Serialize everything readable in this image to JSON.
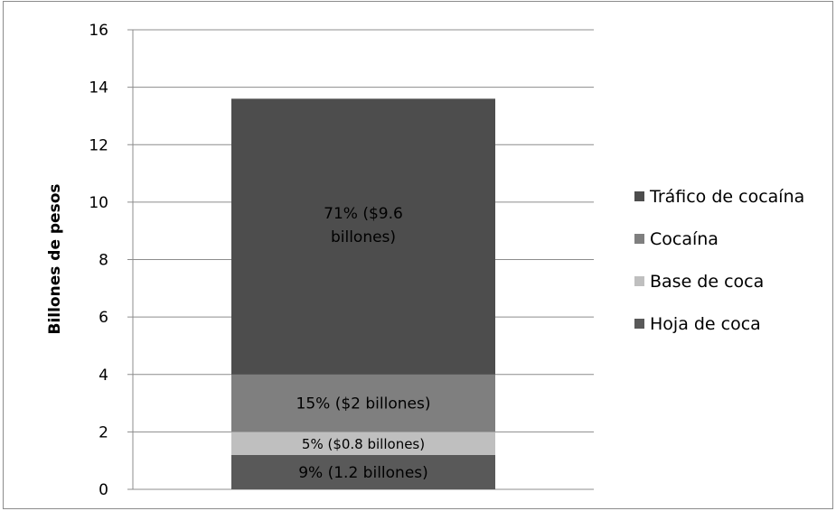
{
  "chart_data": {
    "type": "bar",
    "stacked": true,
    "categories": [
      ""
    ],
    "xlabel": "",
    "ylabel": "Billones de pesos",
    "ylim": [
      0,
      16
    ],
    "yticks": [
      0,
      2,
      4,
      6,
      8,
      10,
      12,
      14,
      16
    ],
    "grid": true,
    "legend_position": "right",
    "series": [
      {
        "name": "Hoja de coca",
        "values": [
          1.2
        ],
        "label": "9% (1.2 billones)",
        "color": "#595959"
      },
      {
        "name": "Base de coca",
        "values": [
          0.8
        ],
        "label": "5% ($0.8 billones)",
        "color": "#bfbfbf"
      },
      {
        "name": "Cocaína",
        "values": [
          2.0
        ],
        "label": "15% ($2 billones)",
        "color": "#7f7f7f"
      },
      {
        "name": "Tráfico de cocaína",
        "values": [
          9.6
        ],
        "label": "71% ($9.6 billones)",
        "color": "#4d4d4d"
      }
    ],
    "legend_order": [
      "Tráfico de cocaína",
      "Cocaína",
      "Base de coca",
      "Hoja de coca"
    ]
  }
}
